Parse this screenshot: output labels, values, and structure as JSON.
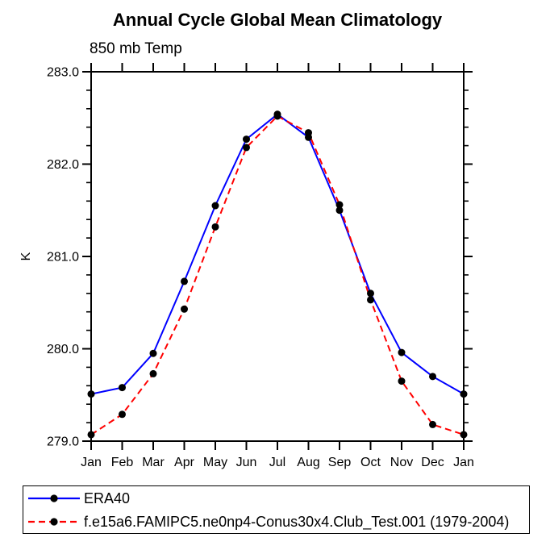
{
  "chart_data": {
    "type": "line",
    "title": "Annual Cycle Global Mean Climatology",
    "subtitle": "850 mb Temp",
    "ylabel": "K",
    "categories": [
      "Jan",
      "Feb",
      "Mar",
      "Apr",
      "May",
      "Jun",
      "Jul",
      "Aug",
      "Sep",
      "Oct",
      "Nov",
      "Dec",
      "Jan"
    ],
    "ylim": [
      279.0,
      283.0
    ],
    "ytick_major": [
      279.0,
      280.0,
      281.0,
      282.0,
      283.0
    ],
    "ytick_minor_step": 0.2,
    "grid": false,
    "legend_position": "bottom",
    "marker": "filled-circle",
    "marker_color": "#000000",
    "axis_color": "#000000",
    "series": [
      {
        "name": "ERA40",
        "color": "#0000ff",
        "style": "solid",
        "values": [
          279.51,
          279.58,
          279.95,
          280.73,
          281.55,
          282.27,
          282.54,
          282.29,
          281.5,
          280.6,
          279.96,
          279.7,
          279.51
        ]
      },
      {
        "name": "f.e15a6.FAMIPC5.ne0np4-Conus30x4.Club_Test.001 (1979-2004)",
        "color": "#ff0000",
        "style": "dashed",
        "values": [
          279.07,
          279.29,
          279.73,
          280.43,
          281.32,
          282.18,
          282.52,
          282.34,
          281.56,
          280.53,
          279.65,
          279.18,
          279.07
        ]
      }
    ]
  }
}
